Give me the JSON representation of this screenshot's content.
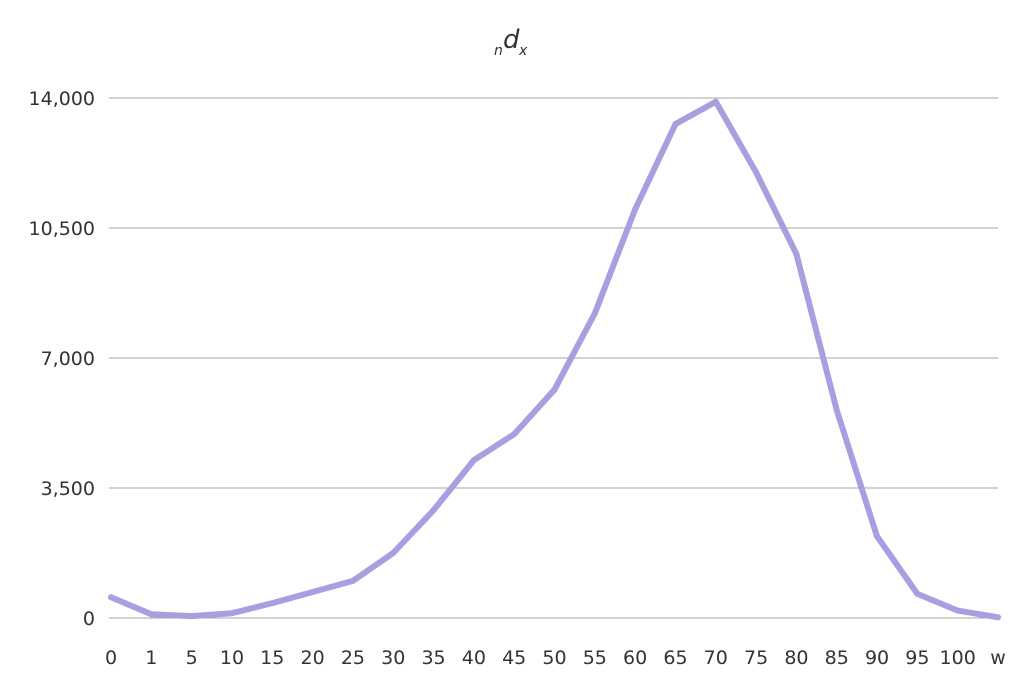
{
  "chart_data": {
    "type": "line",
    "title": {
      "prefix": "n",
      "main": "d",
      "suffix": "x"
    },
    "categories": [
      "0",
      "1",
      "5",
      "10",
      "15",
      "20",
      "25",
      "30",
      "35",
      "40",
      "45",
      "50",
      "55",
      "60",
      "65",
      "70",
      "75",
      "80",
      "85",
      "90",
      "95",
      "100",
      "w"
    ],
    "series": [
      {
        "color": "#a89fe0",
        "values": [
          560,
          100,
          50,
          130,
          400,
          700,
          1000,
          1750,
          2900,
          4250,
          4950,
          6150,
          8200,
          11000,
          13300,
          13900,
          12000,
          9800,
          5600,
          2200,
          650,
          200,
          20
        ]
      }
    ],
    "ylim": [
      0,
      14000
    ],
    "yticks": [
      0,
      3500,
      7000,
      10500,
      14000
    ],
    "ytick_labels": [
      "0",
      "3,500",
      "7,000",
      "10,500",
      "14,000"
    ],
    "grid": "horizontal",
    "colors": {
      "line": "#a89fe0",
      "grid": "#a6a6a6",
      "text": "#333333"
    }
  }
}
